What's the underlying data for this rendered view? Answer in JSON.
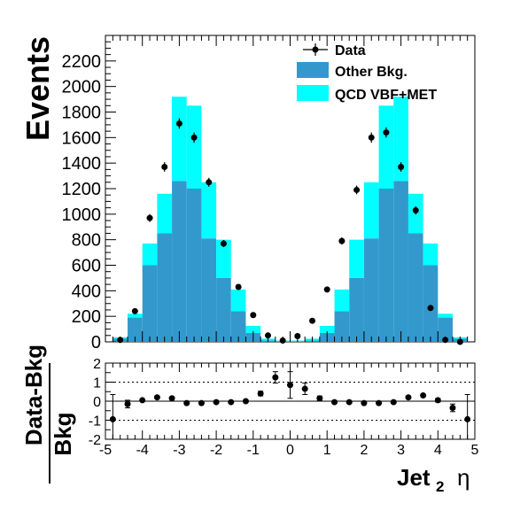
{
  "chart_data": [
    {
      "type": "bar",
      "ylabel": "Events",
      "xlim": [
        -5,
        5
      ],
      "ylim": [
        0,
        2400
      ],
      "yticks": [
        0,
        200,
        400,
        600,
        800,
        1000,
        1200,
        1400,
        1600,
        1800,
        2000,
        2200
      ],
      "bin_edges": [
        -4.8,
        -4.4,
        -4.0,
        -3.6,
        -3.2,
        -2.8,
        -2.4,
        -2.0,
        -1.6,
        -1.2,
        -0.8,
        -0.4,
        0.0,
        0.4,
        0.8,
        1.2,
        1.6,
        2.0,
        2.4,
        2.8,
        3.2,
        3.6,
        4.0,
        4.4,
        4.8
      ],
      "series": [
        {
          "name": "Other Bkg.",
          "role": "stack_bottom",
          "color": "#3399cc",
          "values": [
            25,
            190,
            600,
            850,
            1260,
            1200,
            810,
            500,
            240,
            70,
            10,
            5,
            5,
            10,
            70,
            240,
            500,
            810,
            1200,
            1260,
            850,
            600,
            190,
            25
          ]
        },
        {
          "name": "QCD VBF+MET",
          "role": "stack_top",
          "color": "#00ffff",
          "values": [
            10,
            30,
            170,
            310,
            660,
            650,
            440,
            300,
            170,
            55,
            15,
            5,
            5,
            15,
            55,
            170,
            300,
            440,
            650,
            660,
            310,
            170,
            30,
            10
          ]
        },
        {
          "name": "Data",
          "role": "points",
          "color": "#000000",
          "x": [
            -4.6,
            -4.2,
            -3.8,
            -3.4,
            -3.0,
            -2.6,
            -2.2,
            -1.8,
            -1.4,
            -1.0,
            -0.6,
            -0.2,
            0.2,
            0.6,
            1.0,
            1.4,
            1.8,
            2.2,
            2.6,
            3.0,
            3.4,
            3.8,
            4.2,
            4.6
          ],
          "values": [
            15,
            240,
            970,
            1370,
            1710,
            1600,
            1250,
            770,
            430,
            210,
            50,
            10,
            45,
            165,
            410,
            790,
            1190,
            1600,
            1640,
            1370,
            1030,
            265,
            15,
            0
          ],
          "errors": [
            5,
            16,
            31,
            37,
            41,
            40,
            35,
            28,
            21,
            15,
            7,
            3,
            7,
            13,
            20,
            28,
            34,
            40,
            40,
            37,
            32,
            16,
            4,
            0
          ]
        }
      ],
      "legend": {
        "placement": "top-right",
        "entries": [
          "Data",
          "Other Bkg.",
          "QCD VBF+MET"
        ]
      }
    },
    {
      "type": "scatter",
      "ylabel_num": "Data-Bkg",
      "ylabel_den": "Bkg",
      "xlabel_main": "Jet",
      "xlabel_sub": "2",
      "xlabel_symbol": "η",
      "xlim": [
        -5,
        5
      ],
      "ylim": [
        -2,
        2
      ],
      "xticks": [
        -5,
        -4,
        -3,
        -2,
        -1,
        0,
        1,
        2,
        3,
        4,
        5
      ],
      "yticks": [
        -2,
        -1,
        0,
        1,
        2
      ],
      "dashed_lines": [
        -1,
        1
      ],
      "solid_line": 0,
      "x": [
        -4.8,
        -4.4,
        -4.0,
        -3.6,
        -3.2,
        -2.8,
        -2.4,
        -2.0,
        -1.6,
        -1.2,
        -0.8,
        -0.4,
        0.0,
        0.4,
        0.8,
        1.2,
        1.6,
        2.0,
        2.4,
        2.8,
        3.2,
        3.6,
        4.0,
        4.4,
        4.8
      ],
      "values": [
        -0.95,
        -0.15,
        0.05,
        0.2,
        0.15,
        -0.1,
        -0.1,
        -0.05,
        -0.05,
        0.0,
        0.4,
        1.25,
        0.85,
        0.65,
        0.15,
        -0.05,
        -0.05,
        -0.1,
        -0.1,
        -0.05,
        0.2,
        0.3,
        0.05,
        -0.35,
        -0.95
      ],
      "errors": [
        1.3,
        0.2,
        0.04,
        0.03,
        0.03,
        0.03,
        0.03,
        0.04,
        0.05,
        0.07,
        0.12,
        0.3,
        0.7,
        0.3,
        0.12,
        0.07,
        0.05,
        0.04,
        0.03,
        0.03,
        0.03,
        0.04,
        0.1,
        0.2,
        1.3
      ]
    }
  ]
}
